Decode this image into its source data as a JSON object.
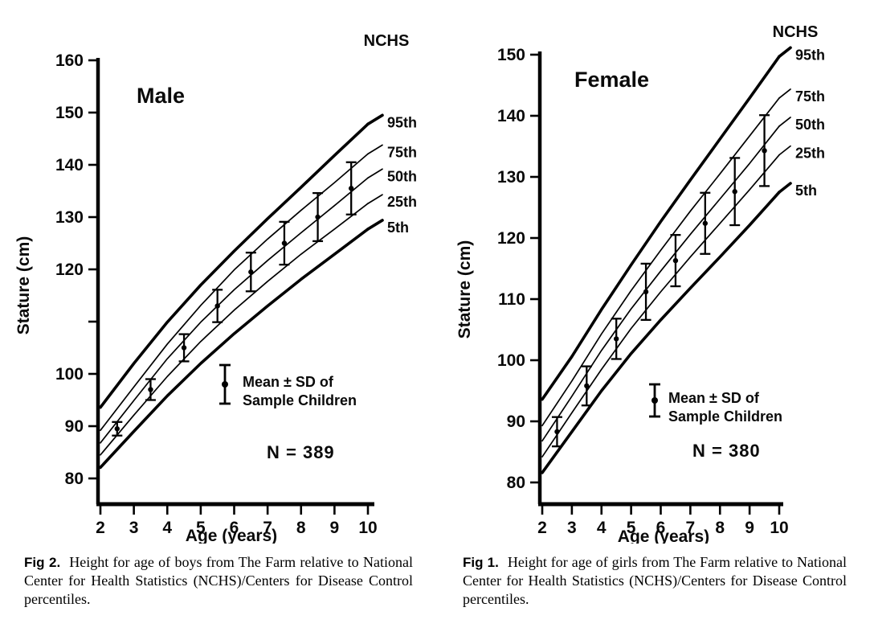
{
  "page": {
    "background": "#ffffff",
    "ink": "#0a0a0a"
  },
  "figures": [
    {
      "panel": "male",
      "caption_label": "Fig 2.",
      "caption_text": "Height for age of boys from The Farm relative to National Center for Health Statistics (NCHS)/Centers for Disease Control percentiles."
    },
    {
      "panel": "female",
      "caption_label": "Fig 1.",
      "caption_text": "Height for age of girls from The Farm relative to National Center for Health Statistics (NCHS)/Centers for Disease Control percentiles."
    }
  ],
  "chart_data": [
    {
      "type": "line",
      "title": "Male",
      "curves_header": "NCHS",
      "xlabel": "Age (years)",
      "ylabel": "Stature (cm)",
      "xlim": [
        2,
        10
      ],
      "ylim": [
        80,
        160
      ],
      "x_ticks": [
        2,
        3,
        4,
        5,
        6,
        7,
        8,
        9,
        10
      ],
      "y_ticks": [
        80,
        90,
        100,
        110,
        120,
        130,
        140,
        150,
        160
      ],
      "y_tick_labels": [
        "80",
        "90",
        "100",
        "",
        "120",
        "130",
        "140",
        "150",
        "160"
      ],
      "grid": false,
      "x": [
        2,
        3,
        4,
        5,
        6,
        7,
        8,
        9,
        10
      ],
      "series": [
        {
          "name": "95th",
          "values": [
            93.6,
            102.0,
            109.9,
            117.0,
            123.5,
            129.7,
            135.7,
            141.8,
            147.8
          ],
          "weight": "bold"
        },
        {
          "name": "75th",
          "values": [
            89.2,
            97.5,
            105.7,
            113.1,
            119.9,
            125.8,
            131.3,
            136.6,
            142.1
          ],
          "weight": "light"
        },
        {
          "name": "50th",
          "values": [
            86.8,
            94.9,
            102.9,
            109.9,
            116.1,
            121.7,
            127.0,
            132.2,
            137.5
          ],
          "weight": "light"
        },
        {
          "name": "25th",
          "values": [
            84.5,
            92.1,
            99.5,
            106.2,
            112.2,
            117.7,
            122.9,
            127.7,
            132.6
          ],
          "weight": "light"
        },
        {
          "name": "5th",
          "values": [
            82.1,
            89.0,
            95.8,
            102.0,
            107.7,
            113.0,
            118.1,
            122.9,
            127.7
          ],
          "weight": "bold"
        }
      ],
      "samples": {
        "ages": [
          2.5,
          3.5,
          4.5,
          5.5,
          6.5,
          7.5,
          8.5,
          9.5
        ],
        "mean": [
          89.5,
          97.0,
          105.0,
          113.0,
          119.5,
          125.0,
          130.0,
          135.5
        ],
        "sd": [
          1.3,
          2.0,
          2.6,
          3.1,
          3.7,
          4.1,
          4.6,
          5.0
        ]
      },
      "legend": {
        "line1": "Mean ± SD of",
        "line2": "Sample Children"
      },
      "n_label": "N = 389"
    },
    {
      "type": "line",
      "title": "Female",
      "curves_header": "NCHS",
      "xlabel": "Age (years)",
      "ylabel": "Stature (cm)",
      "xlim": [
        2,
        10
      ],
      "ylim": [
        80,
        150
      ],
      "x_ticks": [
        2,
        3,
        4,
        5,
        6,
        7,
        8,
        9,
        10
      ],
      "y_ticks": [
        80,
        90,
        100,
        110,
        120,
        130,
        140,
        150
      ],
      "y_tick_labels": [
        "80",
        "90",
        "100",
        "110",
        "120",
        "130",
        "140",
        "150"
      ],
      "grid": false,
      "x": [
        2,
        3,
        4,
        5,
        6,
        7,
        8,
        9,
        10
      ],
      "series": [
        {
          "name": "95th",
          "values": [
            93.6,
            100.6,
            108.3,
            115.6,
            122.7,
            129.5,
            136.2,
            142.9,
            149.7
          ],
          "weight": "bold"
        },
        {
          "name": "75th",
          "values": [
            89.3,
            96.6,
            104.3,
            111.4,
            118.0,
            124.4,
            130.5,
            136.7,
            142.9
          ],
          "weight": "light"
        },
        {
          "name": "50th",
          "values": [
            86.8,
            94.1,
            101.6,
            108.4,
            114.6,
            120.6,
            126.4,
            132.2,
            138.3
          ],
          "weight": "light"
        },
        {
          "name": "25th",
          "values": [
            84.2,
            91.4,
            98.5,
            105.2,
            111.2,
            116.9,
            122.4,
            127.9,
            133.6
          ],
          "weight": "light"
        },
        {
          "name": "5th",
          "values": [
            81.6,
            88.3,
            95.0,
            101.1,
            106.6,
            111.8,
            116.9,
            122.1,
            127.5
          ],
          "weight": "bold"
        }
      ],
      "samples": {
        "ages": [
          2.5,
          3.5,
          4.5,
          5.5,
          6.5,
          7.5,
          8.5,
          9.5
        ],
        "mean": [
          88.3,
          95.8,
          103.5,
          111.2,
          116.3,
          122.4,
          127.6,
          134.3
        ],
        "sd": [
          2.4,
          3.2,
          3.3,
          4.6,
          4.2,
          5.0,
          5.5,
          5.8
        ]
      },
      "legend": {
        "line1": "Mean ± SD of",
        "line2": "Sample Children"
      },
      "n_label": "N = 380"
    }
  ]
}
